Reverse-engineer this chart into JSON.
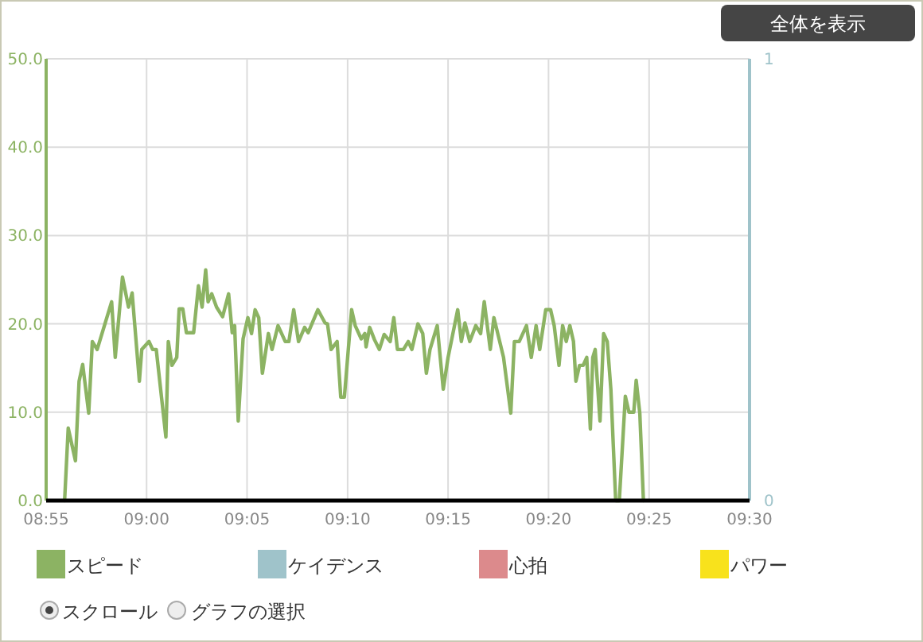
{
  "chart_data": {
    "type": "line",
    "x": [
      8.932,
      8.935,
      8.941,
      8.944,
      8.947,
      8.952,
      8.955,
      8.959,
      8.971,
      8.974,
      8.98,
      8.985,
      8.988,
      8.994,
      8.996,
      9.002,
      9.005,
      9.008,
      9.016,
      9.018,
      9.021,
      9.025,
      9.027,
      9.03,
      9.033,
      9.039,
      9.043,
      9.046,
      9.049,
      9.051,
      9.054,
      9.058,
      9.063,
      9.068,
      9.071,
      9.073,
      9.076,
      9.08,
      9.084,
      9.087,
      9.09,
      9.093,
      9.096,
      9.101,
      9.104,
      9.109,
      9.115,
      9.118,
      9.122,
      9.126,
      9.131,
      9.134,
      9.142,
      9.148,
      9.15,
      9.153,
      9.158,
      9.161,
      9.164,
      9.17,
      9.173,
      9.178,
      9.181,
      9.182,
      9.185,
      9.189,
      9.193,
      9.197,
      9.202,
      9.205,
      9.208,
      9.213,
      9.217,
      9.22,
      9.225,
      9.229,
      9.232,
      9.235,
      9.241,
      9.246,
      9.25,
      9.258,
      9.261,
      9.264,
      9.268,
      9.273,
      9.277,
      9.28,
      9.285,
      9.288,
      9.296,
      9.302,
      9.305,
      9.309,
      9.315,
      9.319,
      9.323,
      9.326,
      9.331,
      9.335,
      9.338,
      9.342,
      9.345,
      9.348,
      9.351,
      9.354,
      9.356,
      9.359,
      9.362,
      9.365,
      9.368,
      9.37,
      9.372,
      9.376,
      9.379,
      9.382,
      9.385,
      9.389,
      9.392,
      9.397,
      9.4,
      9.404,
      9.406,
      9.409,
      9.412
    ],
    "series": [
      {
        "name": "スピード",
        "color": "#8cb363",
        "values": [
          0,
          8.2,
          4.5,
          13.5,
          15.4,
          9.9,
          18,
          17.1,
          22.5,
          16.2,
          25.3,
          21.9,
          23.5,
          13.5,
          17.1,
          18,
          17.1,
          17.1,
          7.2,
          18,
          15.3,
          16.2,
          21.7,
          21.7,
          19,
          19,
          24.3,
          21.9,
          26.1,
          22.5,
          23.4,
          21.9,
          20.8,
          23.4,
          19,
          19.8,
          9,
          18.3,
          20.7,
          18.9,
          21.6,
          20.7,
          14.4,
          18.9,
          17.1,
          19.8,
          18,
          18,
          21.6,
          18,
          19.6,
          19,
          21.6,
          20.1,
          20,
          17.1,
          18,
          11.7,
          11.7,
          21.6,
          19.8,
          18.3,
          18.9,
          17.4,
          19.6,
          18.2,
          17.1,
          18.8,
          18,
          20.7,
          17.1,
          17.1,
          18,
          17.1,
          20,
          18.9,
          14.4,
          17.1,
          19.8,
          12.6,
          16.2,
          21.6,
          18,
          20.1,
          18,
          19.8,
          18.9,
          22.5,
          17.1,
          20.7,
          16.2,
          9.9,
          18,
          18,
          19.8,
          16.2,
          19.8,
          17.1,
          21.6,
          21.6,
          19.8,
          15.3,
          19.8,
          18,
          19.8,
          18,
          13.5,
          15.3,
          15.3,
          16.2,
          8.1,
          16.2,
          17.1,
          9,
          18.9,
          18,
          12.6,
          0,
          0,
          11.8,
          10,
          10,
          13.6,
          9.9,
          0
        ]
      },
      {
        "name": "ケイデンス",
        "color": "#9fc3ca",
        "axis": "y2",
        "values": [
          null,
          null,
          null,
          null,
          null,
          null,
          null,
          null,
          null,
          null,
          null,
          null,
          null,
          null,
          null,
          null,
          null,
          null,
          null,
          null,
          null,
          null,
          null,
          null,
          null,
          null,
          null,
          null,
          null,
          null,
          null,
          null,
          null,
          null,
          null,
          null,
          null,
          null,
          null,
          null,
          null,
          null,
          null,
          null,
          null,
          null,
          null,
          null,
          null,
          null,
          null,
          null,
          null,
          null,
          null,
          null,
          null,
          null,
          null,
          null,
          null,
          null,
          null,
          null,
          null,
          null,
          null,
          null,
          null,
          null,
          null,
          null,
          null,
          null,
          null,
          null,
          null,
          null,
          null,
          null,
          null,
          null,
          null,
          null,
          null,
          null,
          null,
          null,
          null,
          null,
          null,
          null,
          null,
          null,
          null,
          null,
          null,
          null,
          null,
          null,
          null,
          null,
          null,
          null,
          null,
          null,
          null,
          null,
          null,
          null,
          null,
          null,
          null,
          null,
          null,
          null,
          null,
          null,
          null,
          null,
          null,
          null,
          null,
          null,
          null
        ]
      },
      {
        "name": "心拍",
        "color": "#dc8a8c",
        "values": [
          null,
          null,
          null,
          null,
          null,
          null,
          null,
          null,
          null,
          null,
          null,
          null,
          null,
          null,
          null,
          null,
          null,
          null,
          null,
          null,
          null,
          null,
          null,
          null,
          null,
          null,
          null,
          null,
          null,
          null,
          null,
          null,
          null,
          null,
          null,
          null,
          null,
          null,
          null,
          null,
          null,
          null,
          null,
          null,
          null,
          null,
          null,
          null,
          null,
          null,
          null,
          null,
          null,
          null,
          null,
          null,
          null,
          null,
          null,
          null,
          null,
          null,
          null,
          null,
          null,
          null,
          null,
          null,
          null,
          null,
          null,
          null,
          null,
          null,
          null,
          null,
          null,
          null,
          null,
          null,
          null,
          null,
          null,
          null,
          null,
          null,
          null,
          null,
          null,
          null,
          null,
          null,
          null,
          null,
          null,
          null,
          null,
          null,
          null,
          null,
          null,
          null,
          null,
          null,
          null,
          null,
          null,
          null,
          null,
          null,
          null,
          null,
          null,
          null,
          null,
          null,
          null,
          null,
          null,
          null,
          null,
          null,
          null,
          null,
          null
        ]
      },
      {
        "name": "パワー",
        "color": "#f8e21c",
        "values": [
          null,
          null,
          null,
          null,
          null,
          null,
          null,
          null,
          null,
          null,
          null,
          null,
          null,
          null,
          null,
          null,
          null,
          null,
          null,
          null,
          null,
          null,
          null,
          null,
          null,
          null,
          null,
          null,
          null,
          null,
          null,
          null,
          null,
          null,
          null,
          null,
          null,
          null,
          null,
          null,
          null,
          null,
          null,
          null,
          null,
          null,
          null,
          null,
          null,
          null,
          null,
          null,
          null,
          null,
          null,
          null,
          null,
          null,
          null,
          null,
          null,
          null,
          null,
          null,
          null,
          null,
          null,
          null,
          null,
          null,
          null,
          null,
          null,
          null,
          null,
          null,
          null,
          null,
          null,
          null,
          null,
          null,
          null,
          null,
          null,
          null,
          null,
          null,
          null,
          null,
          null,
          null,
          null,
          null,
          null,
          null,
          null,
          null,
          null,
          null,
          null,
          null,
          null,
          null,
          null,
          null,
          null,
          null,
          null,
          null,
          null,
          null,
          null,
          null,
          null,
          null,
          null,
          null,
          null,
          null,
          null,
          null,
          null,
          null,
          null
        ]
      }
    ],
    "xlim": [
      8.9167,
      9.5
    ],
    "xticks": [
      {
        "value": 8.9167,
        "label": "08:55"
      },
      {
        "value": 9,
        "label": "09:00"
      },
      {
        "value": 9.0833,
        "label": "09:05"
      },
      {
        "value": 9.1667,
        "label": "09:10"
      },
      {
        "value": 9.25,
        "label": "09:15"
      },
      {
        "value": 9.3333,
        "label": "09:20"
      },
      {
        "value": 9.4167,
        "label": "09:25"
      },
      {
        "value": 9.5,
        "label": "09:30"
      }
    ],
    "ylim": [
      0,
      50
    ],
    "yticks": [
      {
        "value": 0,
        "label": "0.0"
      },
      {
        "value": 10,
        "label": "10.0"
      },
      {
        "value": 20,
        "label": "20.0"
      },
      {
        "value": 30,
        "label": "30.0"
      },
      {
        "value": 40,
        "label": "40.0"
      },
      {
        "value": 50,
        "label": "50.0"
      }
    ],
    "y2lim": [
      0,
      1
    ],
    "y2ticks": [
      0,
      1
    ],
    "grid": true,
    "legend": "bottom",
    "marker": "none",
    "line_style": "solid",
    "annotations": [
      "全体を表示",
      "スクロール",
      "グラフの選択"
    ]
  }
}
